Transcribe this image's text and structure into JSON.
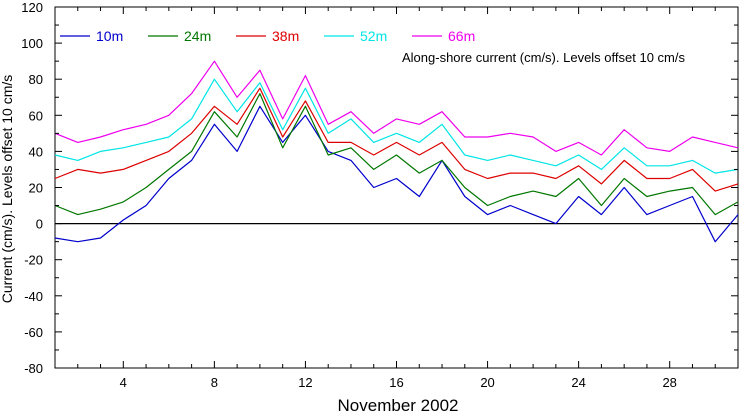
{
  "chart_data": {
    "type": "line",
    "title": "",
    "annotation": "Along-shore current (cm/s). Levels offset 10 cm/s",
    "xlabel": "November 2002",
    "ylabel": "Current (cm/s). Levels offset 10 cm/s",
    "xlim": [
      1,
      31
    ],
    "ylim": [
      -80,
      120
    ],
    "x_ticks": [
      4,
      8,
      12,
      16,
      20,
      24,
      28
    ],
    "y_ticks": [
      -80,
      -60,
      -40,
      -20,
      0,
      20,
      40,
      60,
      80,
      100,
      120
    ],
    "zero_line": 0,
    "grid": false,
    "legend_position": "top-left, inside plot",
    "series": [
      {
        "name": "10m",
        "color": "#0000cc",
        "x": [
          1,
          2,
          3,
          4,
          5,
          6,
          7,
          8,
          9,
          10,
          11,
          12,
          13,
          14,
          15,
          16,
          17,
          18,
          19,
          20,
          21,
          22,
          23,
          24,
          25,
          26,
          27,
          28,
          29,
          30,
          31
        ],
        "y": [
          -8,
          -10,
          -8,
          2,
          10,
          25,
          35,
          55,
          40,
          65,
          45,
          60,
          40,
          35,
          20,
          25,
          15,
          35,
          15,
          5,
          10,
          5,
          0,
          15,
          5,
          20,
          5,
          10,
          15,
          -10,
          5
        ]
      },
      {
        "name": "24m",
        "color": "#007700",
        "x": [
          1,
          2,
          3,
          4,
          5,
          6,
          7,
          8,
          9,
          10,
          11,
          12,
          13,
          14,
          15,
          16,
          17,
          18,
          19,
          20,
          21,
          22,
          23,
          24,
          25,
          26,
          27,
          28,
          29,
          30,
          31
        ],
        "y": [
          10,
          5,
          8,
          12,
          20,
          30,
          40,
          62,
          48,
          72,
          42,
          65,
          38,
          42,
          30,
          38,
          28,
          35,
          20,
          10,
          15,
          18,
          15,
          25,
          10,
          25,
          15,
          18,
          20,
          5,
          12
        ]
      },
      {
        "name": "38m",
        "color": "#dd0000",
        "x": [
          1,
          2,
          3,
          4,
          5,
          6,
          7,
          8,
          9,
          10,
          11,
          12,
          13,
          14,
          15,
          16,
          17,
          18,
          19,
          20,
          21,
          22,
          23,
          24,
          25,
          26,
          27,
          28,
          29,
          30,
          31
        ],
        "y": [
          25,
          30,
          28,
          30,
          35,
          40,
          50,
          65,
          55,
          75,
          48,
          68,
          45,
          45,
          38,
          45,
          38,
          45,
          30,
          25,
          28,
          28,
          25,
          32,
          22,
          35,
          25,
          25,
          30,
          18,
          22
        ]
      },
      {
        "name": "52m",
        "color": "#00e5e5",
        "x": [
          1,
          2,
          3,
          4,
          5,
          6,
          7,
          8,
          9,
          10,
          11,
          12,
          13,
          14,
          15,
          16,
          17,
          18,
          19,
          20,
          21,
          22,
          23,
          24,
          25,
          26,
          27,
          28,
          29,
          30,
          31
        ],
        "y": [
          38,
          35,
          40,
          42,
          45,
          48,
          58,
          80,
          62,
          78,
          52,
          75,
          50,
          58,
          45,
          50,
          45,
          55,
          38,
          35,
          38,
          35,
          32,
          38,
          30,
          42,
          32,
          32,
          35,
          28,
          30
        ]
      },
      {
        "name": "66m",
        "color": "#ee00ee",
        "x": [
          1,
          2,
          3,
          4,
          5,
          6,
          7,
          8,
          9,
          10,
          11,
          12,
          13,
          14,
          15,
          16,
          17,
          18,
          19,
          20,
          21,
          22,
          23,
          24,
          25,
          26,
          27,
          28,
          29,
          30,
          31
        ],
        "y": [
          50,
          45,
          48,
          52,
          55,
          60,
          72,
          90,
          70,
          85,
          58,
          82,
          55,
          62,
          50,
          58,
          55,
          62,
          48,
          48,
          50,
          48,
          40,
          45,
          38,
          52,
          42,
          40,
          48,
          45,
          42
        ]
      }
    ]
  }
}
